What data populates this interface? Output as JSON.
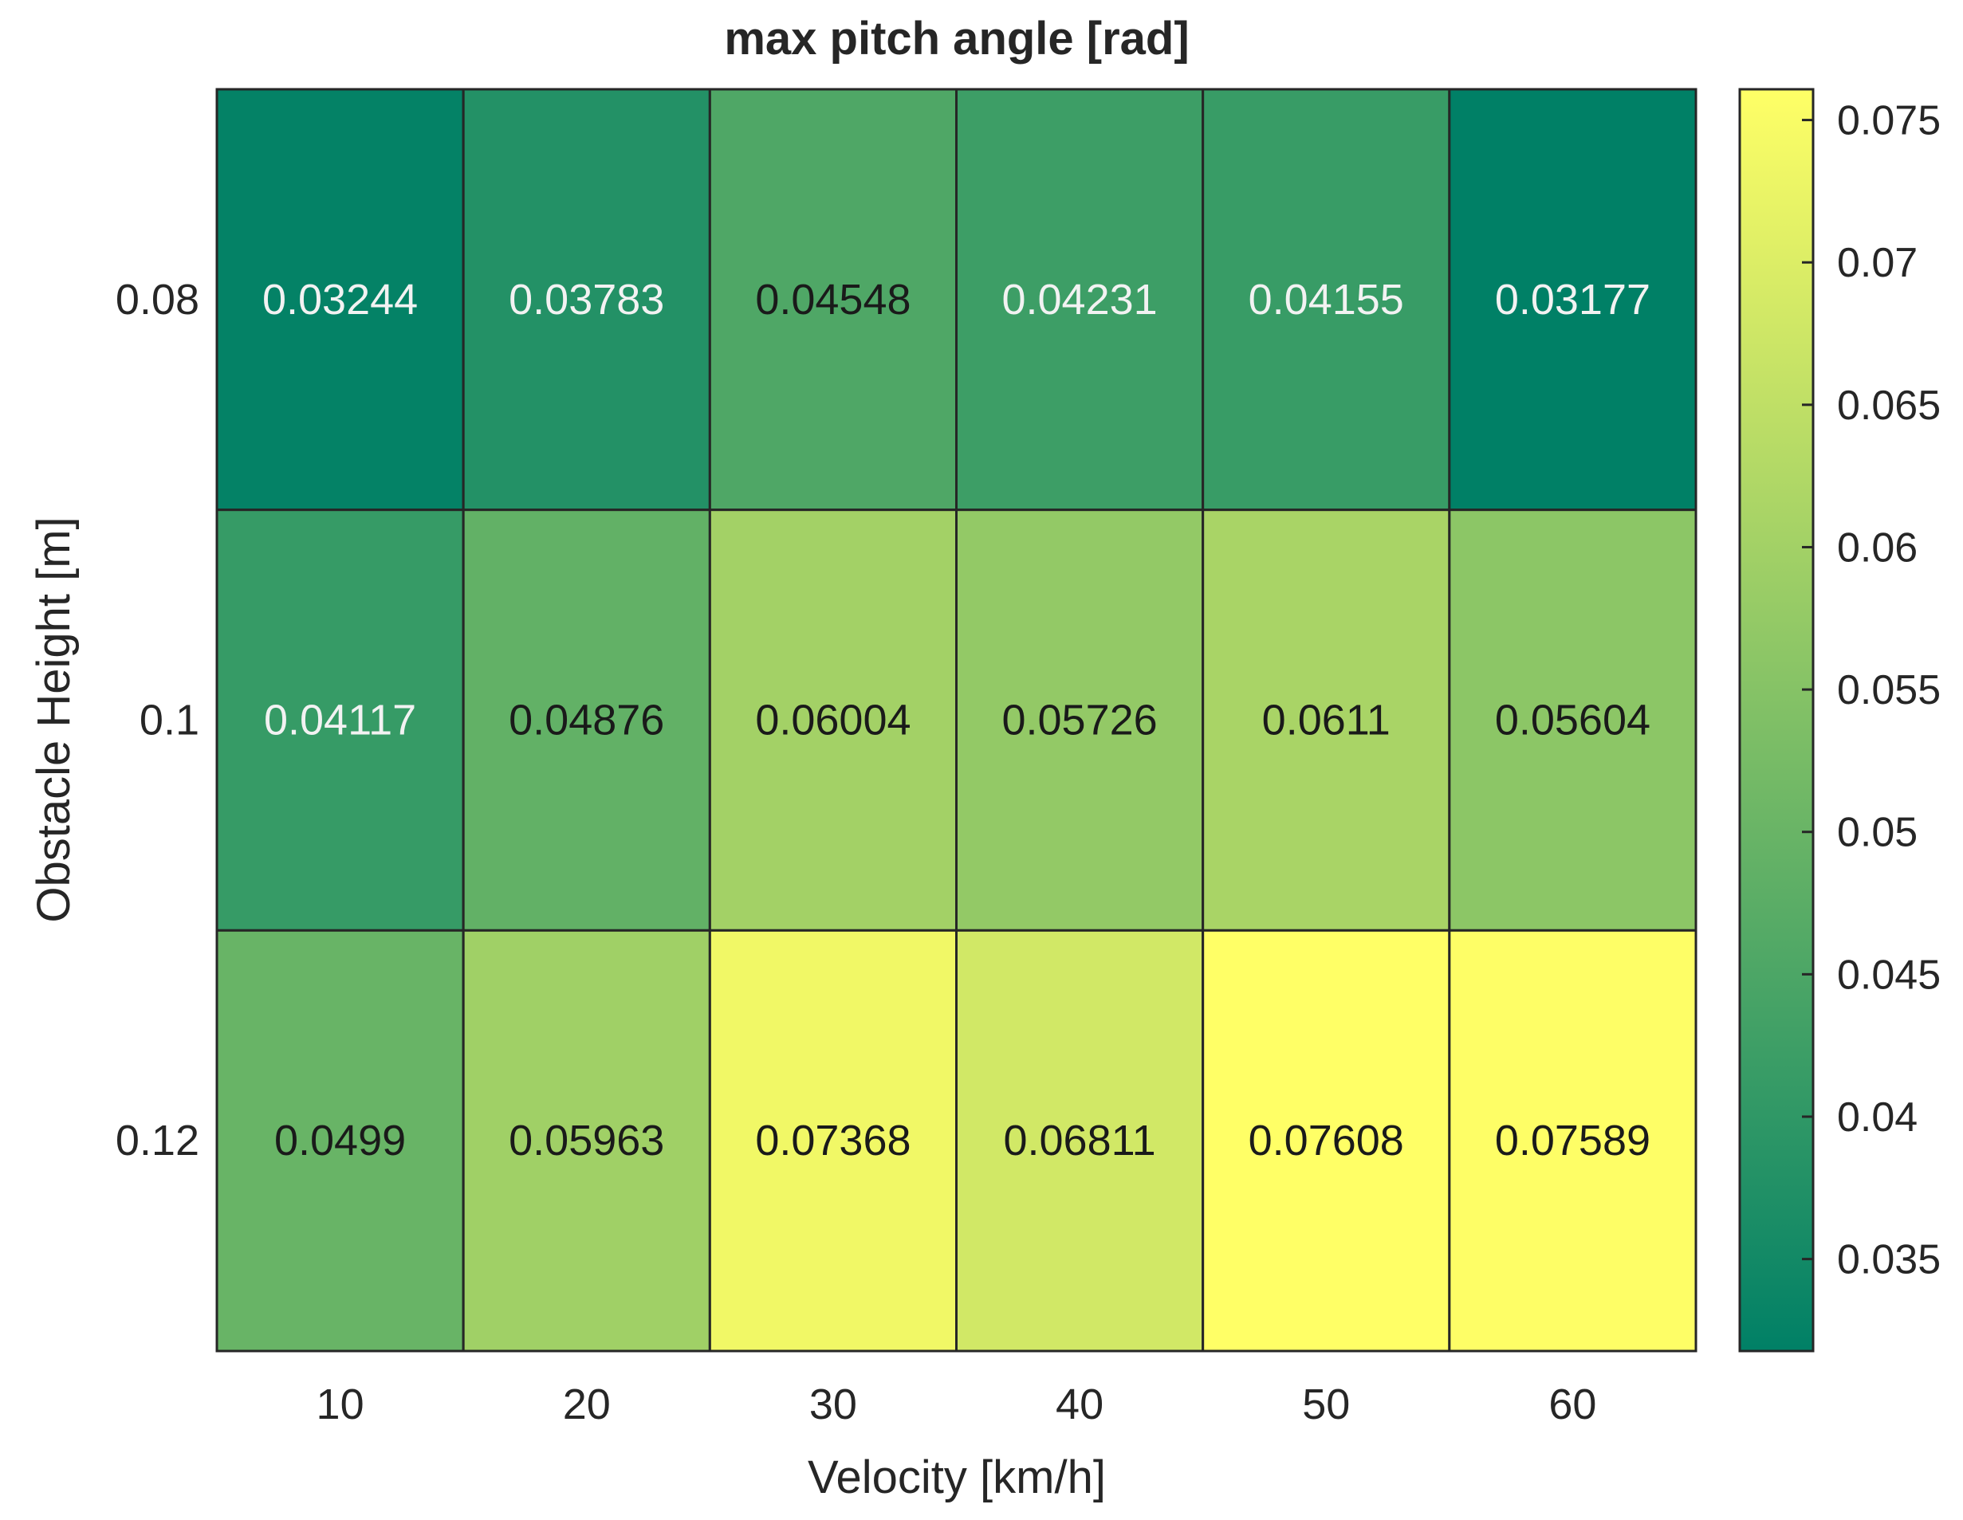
{
  "chart_data": {
    "type": "heatmap",
    "title": "max pitch angle [rad]",
    "xlabel": "Velocity [km/h]",
    "ylabel": "Obstacle Height [m]",
    "x_categories": [
      "10",
      "20",
      "30",
      "40",
      "50",
      "60"
    ],
    "y_categories": [
      "0.08",
      "0.1",
      "0.12"
    ],
    "values": [
      [
        0.03244,
        0.03783,
        0.04548,
        0.04231,
        0.04155,
        0.03177
      ],
      [
        0.04117,
        0.04876,
        0.06004,
        0.05726,
        0.0611,
        0.05604
      ],
      [
        0.0499,
        0.05963,
        0.07368,
        0.06811,
        0.07608,
        0.07589
      ]
    ],
    "cell_labels": [
      [
        "0.03244",
        "0.03783",
        "0.04548",
        "0.04231",
        "0.04155",
        "0.03177"
      ],
      [
        "0.04117",
        "0.04876",
        "0.06004",
        "0.05726",
        "0.0611",
        "0.05604"
      ],
      [
        "0.0499",
        "0.05963",
        "0.07368",
        "0.06811",
        "0.07608",
        "0.07589"
      ]
    ],
    "colorbar": {
      "range": [
        0.03177,
        0.07608
      ],
      "ticks": [
        0.035,
        0.04,
        0.045,
        0.05,
        0.055,
        0.06,
        0.065,
        0.07,
        0.075
      ],
      "tick_labels": [
        "0.035",
        "0.04",
        "0.045",
        "0.05",
        "0.055",
        "0.06",
        "0.065",
        "0.07",
        "0.075"
      ],
      "colormap": "summer",
      "color_low": "#008066",
      "color_high": "#ffff66"
    },
    "grid": false,
    "legend": "colorbar-right"
  }
}
